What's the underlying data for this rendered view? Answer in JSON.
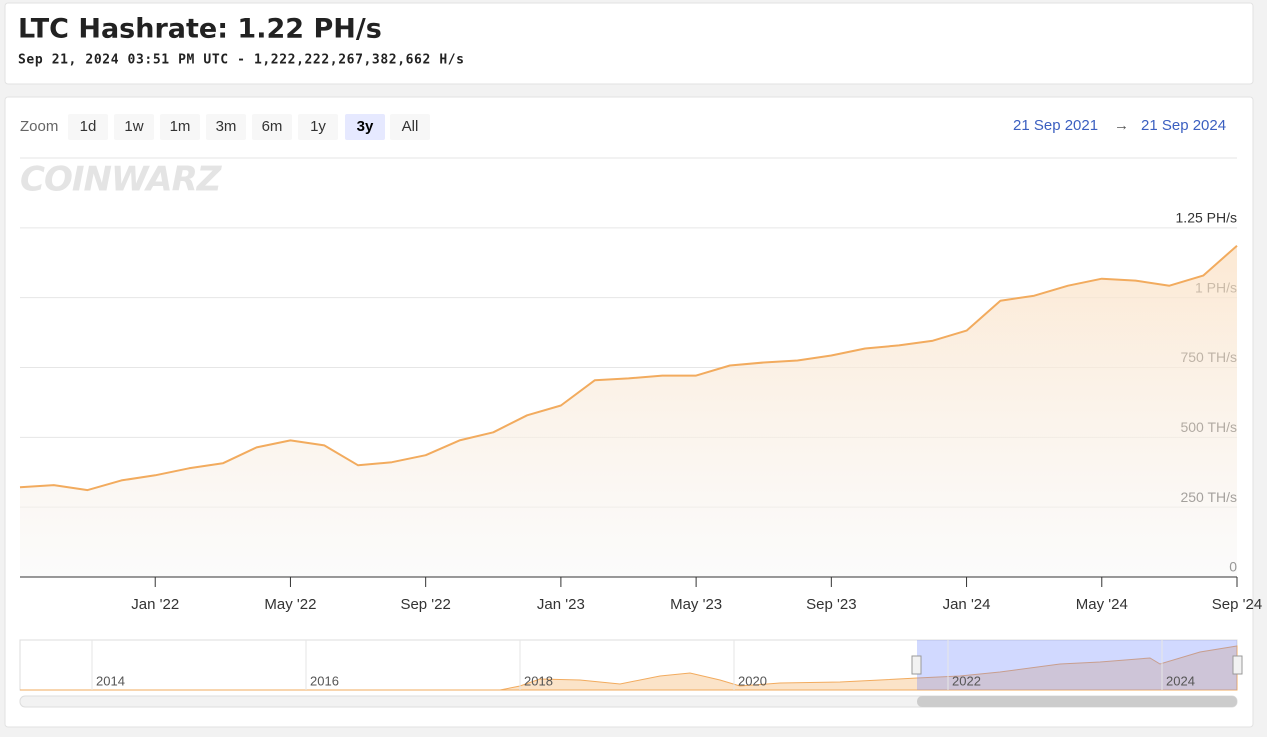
{
  "header": {
    "title": "LTC Hashrate: 1.22 PH/s",
    "subtitle": "Sep 21, 2024 03:51 PM UTC - 1,222,222,267,382,662 H/s"
  },
  "zoom": {
    "label": "Zoom",
    "buttons": [
      "1d",
      "1w",
      "1m",
      "3m",
      "6m",
      "1y",
      "3y",
      "All"
    ],
    "selected": "3y"
  },
  "range": {
    "from": "21 Sep 2021",
    "arrow": "→",
    "to": "21 Sep 2024"
  },
  "watermark": "COINWARZ",
  "navigator": {
    "labels": [
      "2014",
      "2016",
      "2018",
      "2020",
      "2022",
      "2024"
    ]
  },
  "chart_data": {
    "type": "line",
    "color": "#f2ab5e",
    "x": [
      "2021-09",
      "2021-10",
      "2021-11",
      "2021-12",
      "2022-01",
      "2022-02",
      "2022-03",
      "2022-04",
      "2022-05",
      "2022-06",
      "2022-07",
      "2022-08",
      "2022-09",
      "2022-10",
      "2022-11",
      "2022-12",
      "2023-01",
      "2023-02",
      "2023-03",
      "2023-04",
      "2023-05",
      "2023-06",
      "2023-07",
      "2023-08",
      "2023-09",
      "2023-10",
      "2023-11",
      "2023-12",
      "2024-01",
      "2024-02",
      "2024-03",
      "2024-04",
      "2024-05",
      "2024-06",
      "2024-07",
      "2024-08",
      "2024-09"
    ],
    "values": [
      321,
      329,
      311,
      346,
      364,
      389,
      407,
      464,
      489,
      471,
      400,
      411,
      436,
      489,
      518,
      579,
      614,
      704,
      711,
      721,
      721,
      757,
      768,
      775,
      793,
      818,
      829,
      846,
      882,
      989,
      1007,
      1043,
      1068,
      1061,
      1043,
      1079,
      1186
    ],
    "xlim": [
      "2021-09",
      "2024-09"
    ],
    "xticks": [
      {
        "value": "2022-01",
        "label": "Jan '22"
      },
      {
        "value": "2022-05",
        "label": "May '22"
      },
      {
        "value": "2022-09",
        "label": "Sep '22"
      },
      {
        "value": "2023-01",
        "label": "Jan '23"
      },
      {
        "value": "2023-05",
        "label": "May '23"
      },
      {
        "value": "2023-09",
        "label": "Sep '23"
      },
      {
        "value": "2024-01",
        "label": "Jan '24"
      },
      {
        "value": "2024-05",
        "label": "May '24"
      },
      {
        "value": "2024-09",
        "label": "Sep '24"
      }
    ],
    "ylim": [
      0,
      1500
    ],
    "yticks": [
      0,
      {
        "value": 250,
        "label": "250 TH/s"
      },
      {
        "value": 500,
        "label": "500 TH/s"
      },
      {
        "value": 750,
        "label": "750 TH/s"
      },
      {
        "value": 1000,
        "label": "1 PH/s"
      },
      {
        "value": 1250,
        "label": "1.25 PH/s"
      }
    ],
    "grid": true
  }
}
